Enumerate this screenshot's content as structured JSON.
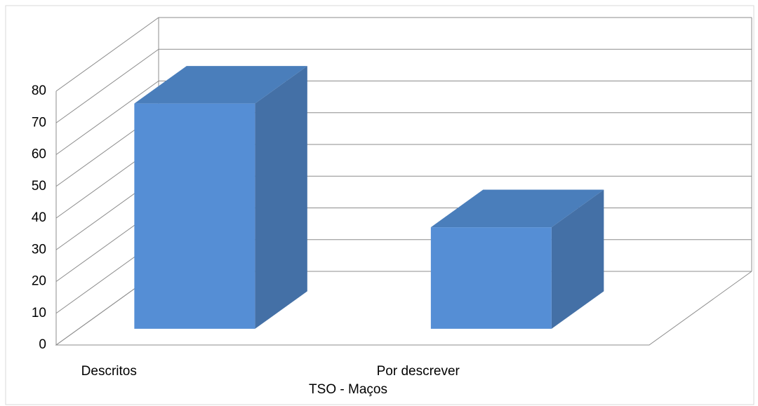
{
  "chart_data": {
    "type": "bar3d",
    "x_label": "TSO - Maços",
    "categories": [
      "Descritos",
      "Por descrever"
    ],
    "values": [
      71,
      32
    ],
    "color": "#558ed5",
    "ylim": [
      0,
      80
    ],
    "yticks": [
      0,
      10,
      20,
      30,
      40,
      50,
      60,
      70,
      80
    ],
    "grid": true
  }
}
